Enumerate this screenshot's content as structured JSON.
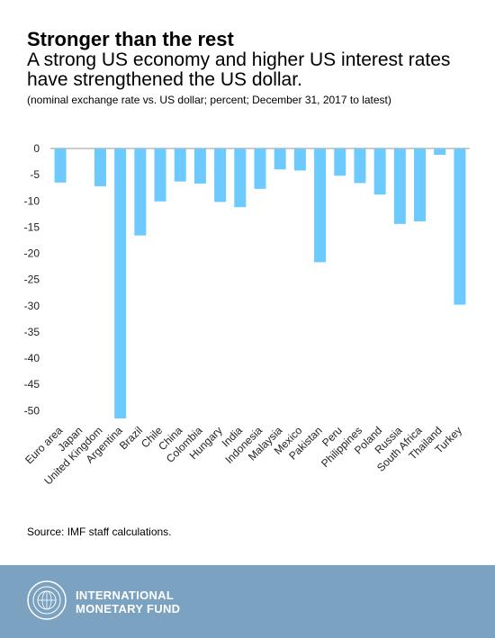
{
  "title": "Stronger than the rest",
  "subtitle": "A strong US economy and higher US interest rates have strengthened the US dollar.",
  "note": "(nominal exchange rate vs. US dollar; percent; December 31, 2017 to latest)",
  "source": "Source: IMF staff calculations.",
  "footer": {
    "brand_line1": "INTERNATIONAL",
    "brand_line2": "MONETARY FUND"
  },
  "colors": {
    "bar": "#6dcaff",
    "axis": "#999999",
    "footer_bg": "#7ba2c0"
  },
  "chart_data": {
    "type": "bar",
    "title": "",
    "xlabel": "",
    "ylabel": "",
    "grid": false,
    "ylim": [
      -51.5,
      0
    ],
    "yticks": [
      0,
      -5,
      -10,
      -15,
      -20,
      -25,
      -30,
      -35,
      -40,
      -45,
      -50
    ],
    "categories": [
      "Euro area",
      "Japan",
      "United Kingdom",
      "Argentina",
      "Brazil",
      "Chile",
      "China",
      "Colombia",
      "Hungary",
      "India",
      "Indonesia",
      "Malaysia",
      "Mexico",
      "Pakistan",
      "Peru",
      "Philippines",
      "Poland",
      "Russia",
      "South Africa",
      "Thailand",
      "Turkey"
    ],
    "values": [
      -6.5,
      0,
      -7.2,
      -51.5,
      -16.6,
      -10.1,
      -6.3,
      -6.7,
      -10.2,
      -11.2,
      -7.7,
      -4.0,
      -4.2,
      -21.7,
      -5.2,
      -6.6,
      -8.8,
      -14.4,
      -13.9,
      -1.2,
      -29.8
    ]
  }
}
